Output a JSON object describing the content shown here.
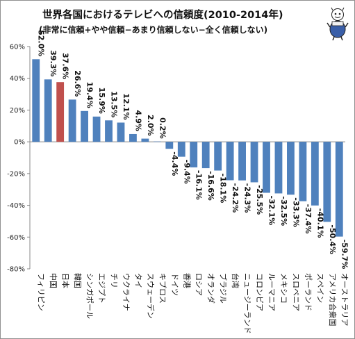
{
  "chart_data": {
    "type": "bar",
    "title": "世界各国におけるテレビへの信頼度(2010-2014年)",
    "subtitle": "(非常に信頼+やや信頼−あまり信頼しない−全く信頼しない)",
    "categories": [
      "フィリピン",
      "中国",
      "日本",
      "韓国",
      "シンガポール",
      "エジプト",
      "チリ",
      "ウクライナ",
      "タイ",
      "スウェーデン",
      "キプロス",
      "ドイツ",
      "香港",
      "ロシア",
      "オランダ",
      "ブラジル",
      "台湾",
      "ニュージーランド",
      "コロンビア",
      "ルーマニア",
      "メキシコ",
      "スロベニア",
      "ポーランド",
      "スペイン",
      "アメリカ合衆国",
      "オーストラリア"
    ],
    "values": [
      52.0,
      39.3,
      37.6,
      26.6,
      19.4,
      15.9,
      13.5,
      12.1,
      4.9,
      2.0,
      0.2,
      -4.4,
      -9.4,
      -16.1,
      -16.6,
      -18.1,
      -24.2,
      -24.3,
      -25.5,
      -32.1,
      -32.5,
      -33.3,
      -37.4,
      -40.1,
      -50.4,
      -59.7
    ],
    "value_labels": [
      "52.0%",
      "39.3%",
      "37.6%",
      "26.6%",
      "19.4%",
      "15.9%",
      "13.5%",
      "12.1%",
      "4.9%",
      "2.0%",
      "0.2%",
      "-4.4%",
      "-9.4%",
      "-16.1%",
      "-16.6%",
      "-18.1%",
      "-24.2%",
      "-24.3%",
      "-25.5%",
      "-32.1%",
      "-32.5%",
      "-33.3%",
      "-37.4%",
      "-40.1%",
      "-50.4%",
      "-59.7%"
    ],
    "ylim": [
      -80,
      60
    ],
    "yticks": [
      60,
      40,
      20,
      0,
      -20,
      -40,
      -60,
      -80
    ],
    "ytick_labels": [
      "60%",
      "40%",
      "20%",
      "0%",
      "-20%",
      "-40%",
      "-60%",
      "-80%"
    ],
    "highlight_index": 2,
    "colors": {
      "bar": "#4f81bd",
      "highlight": "#c0504d",
      "axis": "#888888"
    },
    "grid": false,
    "legend": false
  },
  "mascot": {
    "icon": "cartoon-character-icon"
  }
}
